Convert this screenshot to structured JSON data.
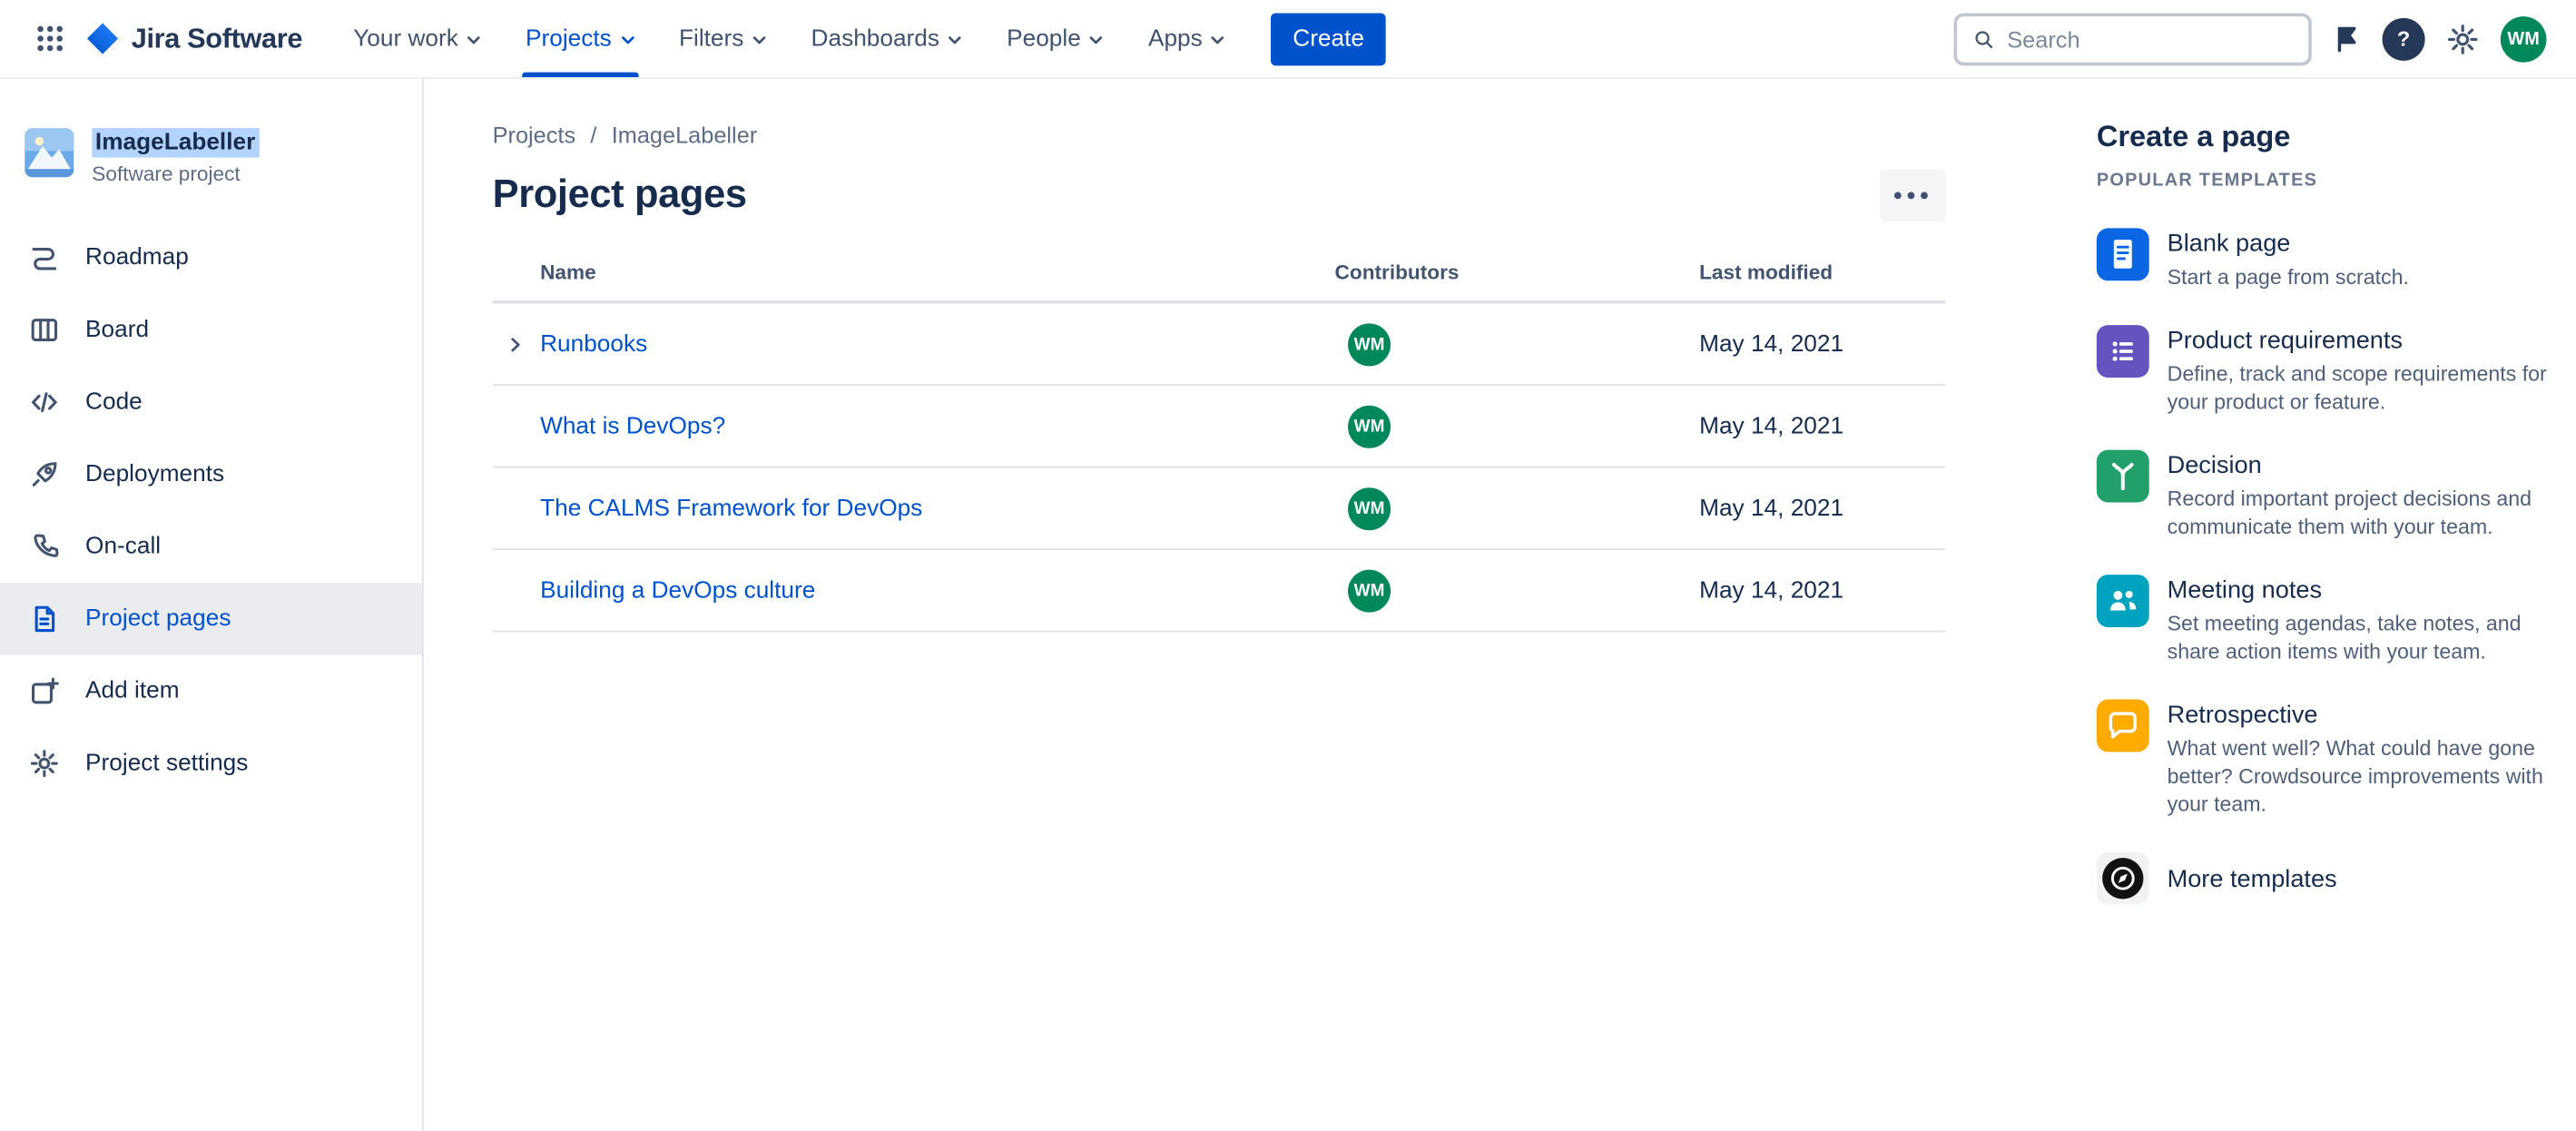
{
  "colors": {
    "accent": "#0052CC",
    "selection_highlight": "#B3D4FF",
    "avatar_green": "#00875A"
  },
  "topbar": {
    "logo_text": "Jira Software",
    "nav": [
      {
        "label": "Your work",
        "active": false
      },
      {
        "label": "Projects",
        "active": true
      },
      {
        "label": "Filters",
        "active": false
      },
      {
        "label": "Dashboards",
        "active": false
      },
      {
        "label": "People",
        "active": false
      },
      {
        "label": "Apps",
        "active": false
      }
    ],
    "create_label": "Create",
    "search_placeholder": "Search",
    "help_glyph": "?",
    "avatar_initials": "WM"
  },
  "sidebar": {
    "project_name": "ImageLabeller",
    "project_type": "Software project",
    "items": [
      {
        "label": "Roadmap",
        "icon": "roadmap",
        "selected": false
      },
      {
        "label": "Board",
        "icon": "board",
        "selected": false
      },
      {
        "label": "Code",
        "icon": "code",
        "selected": false
      },
      {
        "label": "Deployments",
        "icon": "deployments",
        "selected": false
      },
      {
        "label": "On-call",
        "icon": "oncall",
        "selected": false
      },
      {
        "label": "Project pages",
        "icon": "pages",
        "selected": true
      },
      {
        "label": "Add item",
        "icon": "add",
        "selected": false
      },
      {
        "label": "Project settings",
        "icon": "settings",
        "selected": false
      }
    ]
  },
  "main": {
    "breadcrumb": [
      "Projects",
      "ImageLabeller"
    ],
    "breadcrumb_separator": "/",
    "title": "Project pages",
    "more_label": "●●●",
    "table": {
      "columns": [
        "Name",
        "Contributors",
        "Last modified"
      ],
      "rows": [
        {
          "name": "Runbooks",
          "expandable": true,
          "contributor": "WM",
          "modified": "May 14, 2021"
        },
        {
          "name": "What is DevOps?",
          "expandable": false,
          "contributor": "WM",
          "modified": "May 14, 2021"
        },
        {
          "name": "The CALMS Framework for DevOps",
          "expandable": false,
          "contributor": "WM",
          "modified": "May 14, 2021"
        },
        {
          "name": "Building a DevOps culture",
          "expandable": false,
          "contributor": "WM",
          "modified": "May 14, 2021"
        }
      ]
    }
  },
  "templates_panel": {
    "title": "Create a page",
    "subtitle": "POPULAR TEMPLATES",
    "templates": [
      {
        "name": "Blank page",
        "description": "Start a page from scratch.",
        "color": "#0B66E4",
        "icon": "blank-page"
      },
      {
        "name": "Product requirements",
        "description": "Define, track and scope requirements for your product or feature.",
        "color": "#6554C0",
        "icon": "product-requirements"
      },
      {
        "name": "Decision",
        "description": "Record important project decisions and communicate them with your team.",
        "color": "#22A06B",
        "icon": "decision"
      },
      {
        "name": "Meeting notes",
        "description": "Set meeting agendas, take notes, and share action items with your team.",
        "color": "#00A3BF",
        "icon": "meeting-notes"
      },
      {
        "name": "Retrospective",
        "description": "What went well? What could have gone better? Crowdsource improvements with your team.",
        "color": "#FFAB00",
        "icon": "retrospective"
      },
      {
        "name": "More templates",
        "description": "",
        "color": "#101214",
        "icon": "more-templates"
      }
    ]
  }
}
